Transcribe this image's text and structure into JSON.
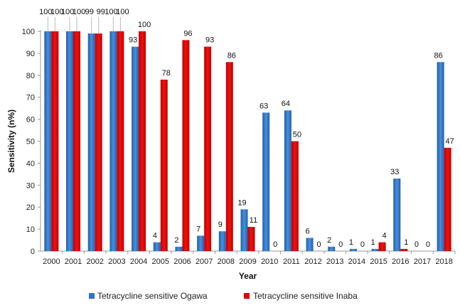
{
  "chart_data": {
    "type": "bar",
    "xlabel": "Year",
    "ylabel": "Sensitivity (n%)",
    "ylim": [
      0,
      100
    ],
    "yticks": [
      0,
      10,
      20,
      30,
      40,
      50,
      60,
      70,
      80,
      90,
      100
    ],
    "grid": false,
    "legend": "bottom",
    "categories": [
      "2000",
      "2001",
      "2002",
      "2003",
      "2004",
      "2005",
      "2006",
      "2007",
      "2008",
      "2009",
      "2010",
      "2011",
      "2012",
      "2013",
      "2014",
      "2015",
      "2016",
      "2017",
      "2018"
    ],
    "series": [
      {
        "name": "Tetracycline sensitive Ogawa",
        "color": "#2E75C9",
        "values": [
          100,
          100,
          99,
          100,
          93,
          4,
          2,
          7,
          9,
          19,
          63,
          64,
          6,
          2,
          1,
          1,
          33,
          0,
          86
        ],
        "labels": [
          "100",
          "100",
          "99",
          "100",
          "93",
          "4",
          "2",
          "7",
          "9",
          "19",
          "63",
          "64",
          "6",
          "2",
          "1",
          "1",
          "33",
          "0",
          "86"
        ]
      },
      {
        "name": "Tetracycline sensitive Inaba",
        "color": "#E00000",
        "values": [
          100,
          100,
          99,
          100,
          100,
          78,
          96,
          93,
          86,
          11,
          0,
          50,
          0,
          0,
          0,
          4,
          1,
          0,
          47
        ],
        "labels": [
          "100",
          "100",
          "99",
          "100",
          "100",
          "78",
          "96",
          "93",
          "86",
          "11",
          "0",
          "50",
          "0",
          "0",
          "0",
          "4",
          "1",
          "0",
          "47"
        ]
      }
    ]
  }
}
